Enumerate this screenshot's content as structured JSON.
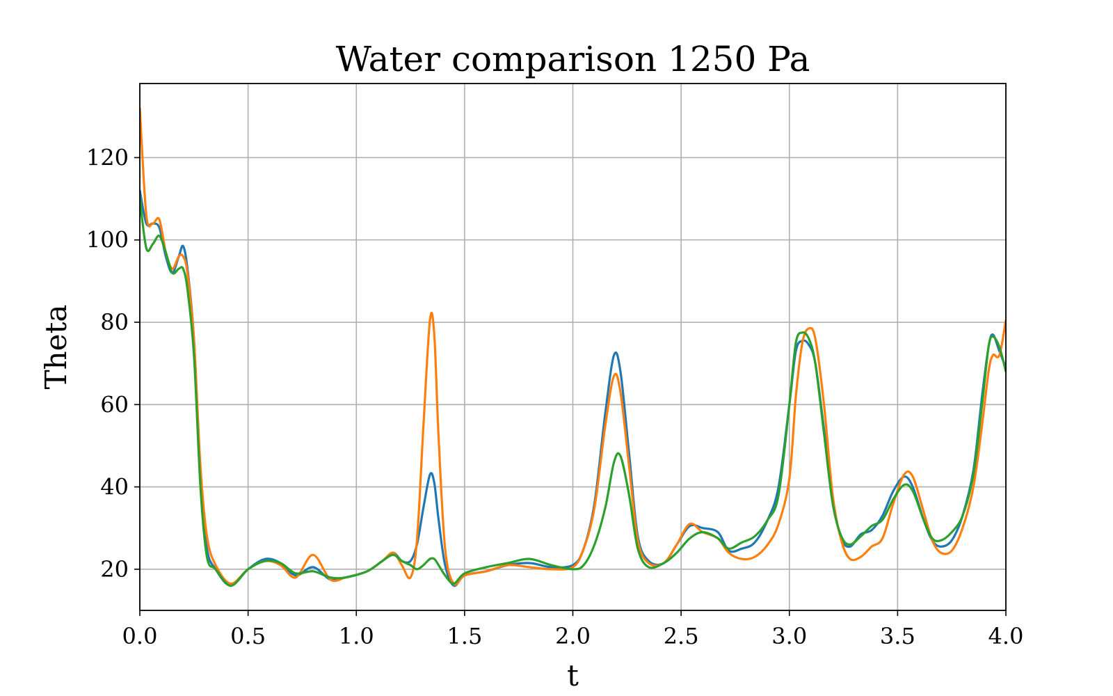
{
  "chart_data": {
    "type": "line",
    "title": "Water comparison 1250 Pa",
    "xlabel": "t",
    "ylabel": "Theta",
    "xlim": [
      0.0,
      4.0
    ],
    "ylim": [
      10,
      138
    ],
    "xticks": [
      "0.0",
      "0.5",
      "1.0",
      "1.5",
      "2.0",
      "2.5",
      "3.0",
      "3.5",
      "4.0"
    ],
    "yticks": [
      "20",
      "40",
      "60",
      "80",
      "100",
      "120"
    ],
    "grid": true,
    "x": [
      0.0,
      0.03,
      0.06,
      0.09,
      0.12,
      0.15,
      0.18,
      0.2,
      0.22,
      0.25,
      0.28,
      0.31,
      0.35,
      0.42,
      0.5,
      0.58,
      0.65,
      0.72,
      0.8,
      0.88,
      0.95,
      1.05,
      1.12,
      1.17,
      1.21,
      1.25,
      1.28,
      1.31,
      1.34,
      1.36,
      1.38,
      1.41,
      1.45,
      1.5,
      1.6,
      1.7,
      1.8,
      1.9,
      2.0,
      2.05,
      2.1,
      2.15,
      2.19,
      2.22,
      2.26,
      2.3,
      2.35,
      2.42,
      2.48,
      2.54,
      2.6,
      2.67,
      2.72,
      2.78,
      2.84,
      2.9,
      2.95,
      3.0,
      3.03,
      3.06,
      3.09,
      3.12,
      3.16,
      3.2,
      3.24,
      3.28,
      3.33,
      3.38,
      3.43,
      3.48,
      3.53,
      3.57,
      3.62,
      3.66,
      3.7,
      3.75,
      3.8,
      3.85,
      3.89,
      3.92,
      3.94,
      3.97,
      4.0
    ],
    "series": [
      {
        "color": "#1f77b4",
        "values": [
          112,
          104,
          104,
          103,
          96,
          92,
          96,
          98.5,
          93,
          76,
          42,
          25,
          20,
          16,
          20,
          22.5,
          21.5,
          18.5,
          20.5,
          17.5,
          18,
          19.5,
          22,
          24,
          22,
          22,
          26,
          35,
          43,
          41,
          32,
          21,
          16,
          18.5,
          19.5,
          21,
          21.5,
          20.5,
          21,
          25,
          36,
          58,
          72,
          68,
          48,
          28,
          22,
          21.5,
          26,
          30.5,
          30,
          29,
          24.5,
          25,
          26.5,
          32,
          40,
          60,
          73,
          75.5,
          74.5,
          70,
          54,
          37,
          27.5,
          25.5,
          28.5,
          29.5,
          33,
          39,
          42.5,
          40,
          32,
          27,
          25.5,
          27,
          33,
          44,
          62,
          74,
          77,
          73,
          69
        ]
      },
      {
        "color": "#ff7f0e",
        "values": [
          132,
          106,
          104,
          105,
          97,
          93,
          96,
          96,
          92,
          76,
          45,
          28,
          21,
          16.5,
          20,
          22,
          21,
          18,
          23.5,
          17.5,
          18,
          19.5,
          22,
          24,
          21,
          18,
          27,
          55,
          80.5,
          77,
          52,
          25,
          16.5,
          18.5,
          19.5,
          21,
          20.5,
          20,
          20.5,
          25,
          35,
          55,
          67,
          63,
          45,
          27,
          21.5,
          21.5,
          26,
          31,
          29,
          27.5,
          24,
          22.5,
          23,
          26,
          31,
          42,
          62,
          75,
          78.5,
          76,
          60,
          38,
          27,
          22.5,
          23,
          25.5,
          27.5,
          36,
          43,
          42.5,
          34,
          27,
          24,
          24.5,
          30,
          40,
          55,
          68,
          72,
          72,
          80.5
        ]
      },
      {
        "color": "#2ca02c",
        "values": [
          110,
          98,
          99,
          101,
          97,
          92,
          93,
          93,
          88,
          72,
          40,
          23,
          20,
          16,
          20,
          22,
          21.5,
          19,
          19.5,
          18,
          18,
          19.5,
          22,
          23.5,
          22,
          21,
          20,
          21,
          22.5,
          22.5,
          21,
          18.5,
          16.5,
          19,
          20.5,
          21.5,
          22.5,
          21,
          20,
          21,
          26,
          35,
          46,
          47.5,
          38,
          25,
          20.5,
          21.5,
          24,
          27.5,
          29,
          27.5,
          25,
          26.5,
          28,
          32,
          38,
          60,
          75,
          77.5,
          76,
          70,
          53,
          36,
          28,
          26,
          28,
          30.5,
          32,
          37,
          40.5,
          39,
          32,
          27.5,
          27,
          29,
          33,
          43,
          60,
          74,
          76.5,
          74,
          68
        ]
      }
    ]
  }
}
